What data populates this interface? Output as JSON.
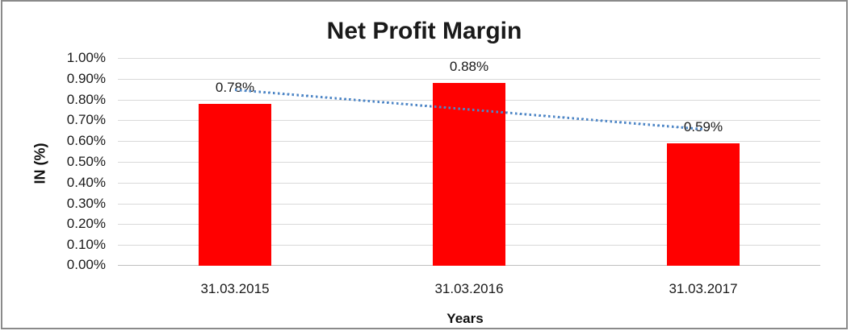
{
  "chart_data": {
    "type": "bar",
    "title": "Net Profit Margin",
    "categories": [
      "31.03.2015",
      "31.03.2016",
      "31.03.2017"
    ],
    "values": [
      0.78,
      0.88,
      0.59
    ],
    "data_labels": [
      "0.78%",
      "0.88%",
      "0.59%"
    ],
    "xlabel": "Years",
    "ylabel": "IN (%)",
    "ylim": [
      0,
      1.0
    ],
    "ytick_step": 0.1,
    "ytick_labels": [
      "0.00%",
      "0.10%",
      "0.20%",
      "0.30%",
      "0.40%",
      "0.50%",
      "0.60%",
      "0.70%",
      "0.80%",
      "0.90%",
      "1.00%"
    ],
    "grid": true,
    "legend": "none",
    "bar_color": "#FF0000",
    "gridline_color": "#D9D9D9",
    "axis_line_color": "#BFBFBF",
    "text_color": "#1A1A1A",
    "trendline": {
      "type": "linear",
      "style": "dotted",
      "color": "#4E86C6",
      "start_value": 0.845,
      "end_value": 0.655
    }
  }
}
